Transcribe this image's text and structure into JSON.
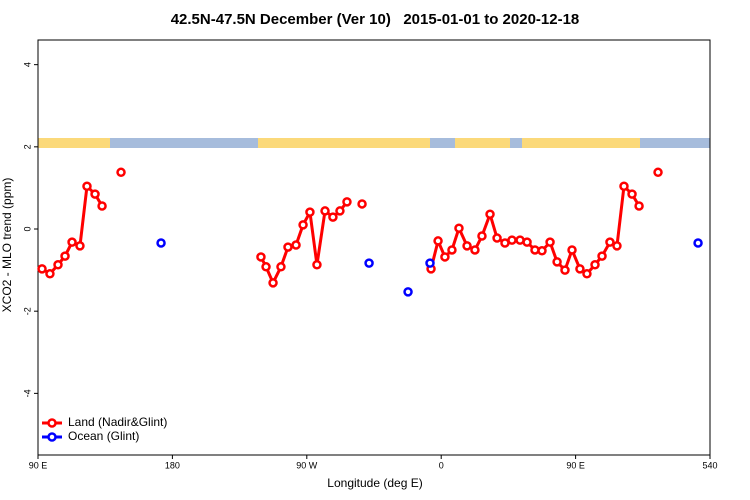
{
  "chart_data": {
    "type": "line",
    "title": "42.5N-47.5N December (Ver 10)   2015-01-01 to 2020-12-18",
    "xlabel": "Longitude (deg E)",
    "ylabel": "XCO2 - MLO trend (ppm)",
    "xlim": [
      90,
      540
    ],
    "ylim": [
      -5.5,
      4.6
    ],
    "xticks": [
      {
        "value": 90,
        "label": "90 E"
      },
      180,
      {
        "value": 270,
        "label": "90 W"
      },
      {
        "value": 360,
        "label": "0"
      },
      {
        "value": 450,
        "label": "90 E"
      },
      540
    ],
    "yticks": [
      -4,
      -2,
      0,
      2,
      4
    ],
    "legend": "bottom-left",
    "series": [
      {
        "name": "Land (Nadir&Glint)",
        "color": "#ff0000",
        "x": [
          92.7,
          98.0,
          103.4,
          108.1,
          112.8,
          118.1,
          122.8,
          128.2,
          132.9,
          null,
          145.6,
          null,
          239.3,
          242.7,
          247.4,
          252.7,
          257.4,
          262.8,
          267.5,
          272.1,
          276.8,
          282.2,
          287.5,
          292.2,
          296.9,
          null,
          307.0,
          null,
          353.2,
          357.9,
          362.5,
          367.2,
          371.9,
          377.3,
          382.6,
          387.3,
          392.7,
          397.4,
          402.7,
          407.4,
          412.8,
          417.5,
          422.8,
          427.5,
          432.9,
          437.6,
          442.9,
          447.6,
          452.9,
          457.6,
          463.0,
          467.7,
          473.0,
          477.7,
          482.4,
          487.8,
          492.5,
          null,
          505.2
        ],
        "values": [
          -0.97,
          -1.09,
          -0.87,
          -0.66,
          -0.32,
          -0.41,
          1.04,
          0.85,
          0.56,
          null,
          1.38,
          null,
          -0.68,
          -0.92,
          -1.31,
          -0.92,
          -0.44,
          -0.39,
          0.1,
          0.41,
          -0.87,
          0.44,
          0.29,
          0.44,
          0.66,
          null,
          0.61,
          null,
          -0.97,
          -0.29,
          -0.68,
          -0.51,
          0.02,
          -0.41,
          -0.51,
          -0.17,
          0.36,
          -0.22,
          -0.34,
          -0.27,
          -0.27,
          -0.32,
          -0.51,
          -0.53,
          -0.32,
          -0.8,
          -1.0,
          -0.51,
          -0.97,
          -1.09,
          -0.87,
          -0.66,
          -0.32,
          -0.41,
          1.04,
          0.85,
          0.56,
          null,
          1.38
        ]
      },
      {
        "name": "Ocean (Glint)",
        "color": "#0000ff",
        "x": [
          172.4,
          null,
          311.7,
          null,
          337.8,
          null,
          352.5,
          null,
          532.0
        ],
        "values": [
          -0.34,
          null,
          -0.83,
          null,
          -1.53,
          null,
          -0.83,
          null,
          -0.34
        ]
      }
    ]
  }
}
